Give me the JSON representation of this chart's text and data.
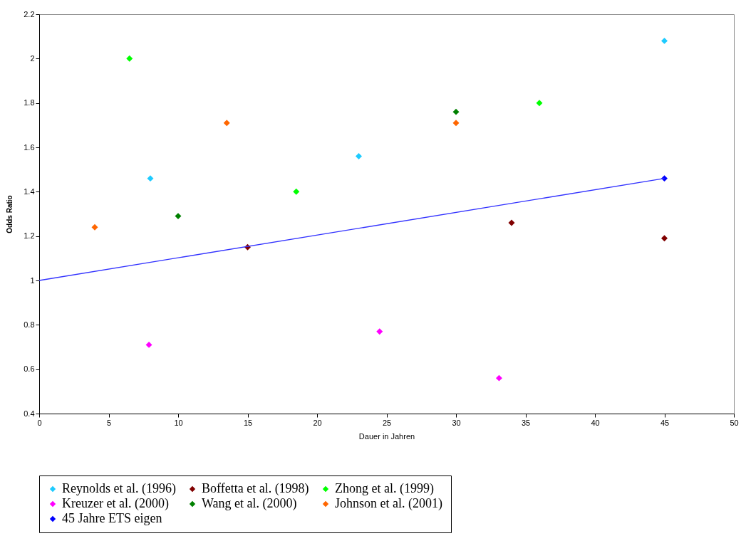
{
  "chart_data": {
    "type": "scatter",
    "xlabel": "Dauer in Jahren",
    "ylabel": "Odds Ratio",
    "xlim": [
      0,
      50
    ],
    "xticks": [
      0,
      5,
      10,
      15,
      20,
      25,
      30,
      35,
      40,
      45,
      50
    ],
    "ylim": [
      0.4,
      2.2
    ],
    "yticks": [
      0.4,
      0.6,
      0.8,
      1,
      1.2,
      1.4,
      1.6,
      1.8,
      2,
      2.2
    ],
    "grid": false,
    "legend": "bottom",
    "marker": "diamond",
    "series": [
      {
        "name": "Reynolds et al. (1996)",
        "color": "#1ecbff",
        "x": [
          8,
          23,
          45
        ],
        "values": [
          1.46,
          1.56,
          2.08
        ]
      },
      {
        "name": "Boffetta et al. (1998)",
        "color": "#800000",
        "x": [
          15,
          34,
          45
        ],
        "values": [
          1.15,
          1.26,
          1.19
        ]
      },
      {
        "name": "Zhong  et  al.  (1999)",
        "color": "#00ff00",
        "x": [
          6.5,
          18.5,
          36
        ],
        "values": [
          2.0,
          1.4,
          1.8
        ]
      },
      {
        "name": "Kreuzer et al. (2000)",
        "color": "#ff00ff",
        "x": [
          7.9,
          24.5,
          33.1
        ],
        "values": [
          0.71,
          0.77,
          0.56
        ]
      },
      {
        "name": "Wang et al. (2000)",
        "color": "#008000",
        "x": [
          10,
          30
        ],
        "values": [
          1.29,
          1.76
        ]
      },
      {
        "name": "Johnson et al. (2001)",
        "color": "#ff6600",
        "x": [
          4,
          13.5,
          30
        ],
        "values": [
          1.24,
          1.71,
          1.71
        ]
      },
      {
        "name": "45 Jahre ETS eigen",
        "color": "#0000ff",
        "x": [
          45
        ],
        "values": [
          1.46
        ]
      },
      {
        "type": "line",
        "marker": "none",
        "color": "#3333ff",
        "x": [
          0,
          45
        ],
        "values": [
          1.0,
          1.46
        ]
      }
    ]
  }
}
